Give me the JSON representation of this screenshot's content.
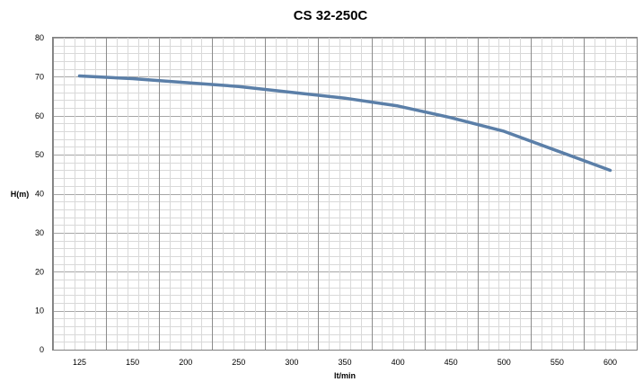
{
  "chart_data": {
    "type": "line",
    "title": "CS 32-250C",
    "xlabel": "lt/min",
    "ylabel": "H(m)",
    "x": [
      125,
      150,
      200,
      250,
      300,
      350,
      400,
      450,
      500,
      550,
      600
    ],
    "series": [
      {
        "values": [
          70.2,
          69.5,
          68.5,
          67.5,
          66,
          64.5,
          62.5,
          59.5,
          56,
          51,
          46
        ],
        "color": "#5b7fa8"
      }
    ],
    "ylim": [
      0,
      80
    ],
    "yticks": [
      0,
      10,
      20,
      30,
      40,
      50,
      60,
      70,
      80
    ],
    "xticks": [
      "125",
      "150",
      "200",
      "250",
      "300",
      "350",
      "400",
      "450",
      "500",
      "550",
      "600"
    ],
    "grid": true,
    "legend": "none"
  }
}
